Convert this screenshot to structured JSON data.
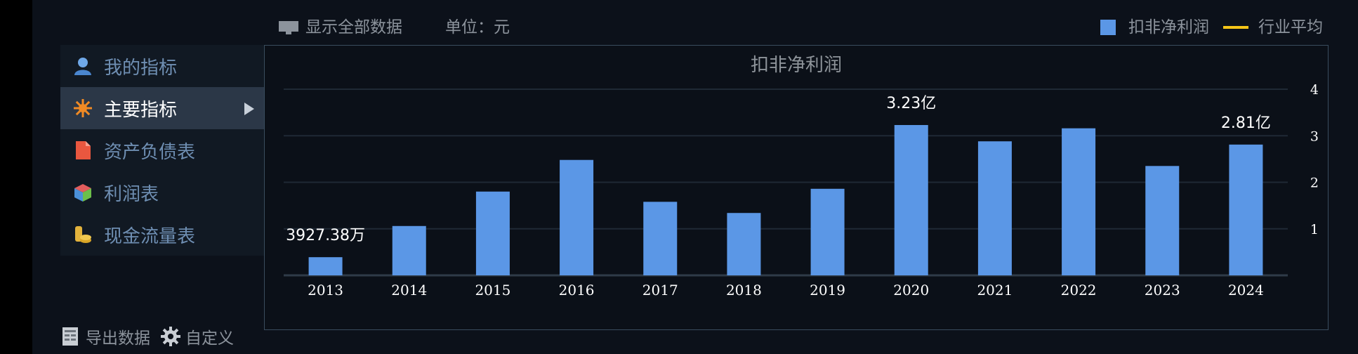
{
  "toolbar": {
    "show_all_label": "显示全部数据",
    "unit_label": "单位：元"
  },
  "legend": {
    "items": [
      {
        "label": "扣非净利润",
        "color": "#5b97e6",
        "kind": "bar"
      },
      {
        "label": "行业平均",
        "color": "#f5c518",
        "kind": "line"
      }
    ]
  },
  "sidebar": {
    "items": [
      {
        "label": "我的指标",
        "icon": "user-icon",
        "active": false
      },
      {
        "label": "主要指标",
        "icon": "star-burst-icon",
        "active": true
      },
      {
        "label": "资产负债表",
        "icon": "document-icon",
        "active": false
      },
      {
        "label": "利润表",
        "icon": "cube-icon",
        "active": false
      },
      {
        "label": "现金流量表",
        "icon": "coins-icon",
        "active": false
      }
    ]
  },
  "tools": {
    "export_label": "导出数据",
    "custom_label": "自定义"
  },
  "colors": {
    "bar": "#5b97e6",
    "grid": "#1f2935",
    "axis": "#2f3b48"
  },
  "chart_data": {
    "type": "bar",
    "title": "扣非净利润",
    "categories": [
      "2013",
      "2014",
      "2015",
      "2016",
      "2017",
      "2018",
      "2019",
      "2020",
      "2021",
      "2022",
      "2023",
      "2024"
    ],
    "series": [
      {
        "name": "扣非净利润",
        "values": [
          0.39,
          1.06,
          1.8,
          2.48,
          1.58,
          1.34,
          1.86,
          3.23,
          2.88,
          3.16,
          2.35,
          2.81
        ]
      }
    ],
    "y_unit": "亿",
    "ylim": [
      0,
      4
    ],
    "yticks": [
      "1",
      "2",
      "3",
      "4"
    ],
    "y_axis_side": "right",
    "grid": true,
    "data_labels": [
      {
        "index": 0,
        "text": "3927.38万"
      },
      {
        "index": 7,
        "text": "3.23亿"
      },
      {
        "index": 11,
        "text": "2.81亿"
      }
    ],
    "legend_position": "top-right"
  }
}
